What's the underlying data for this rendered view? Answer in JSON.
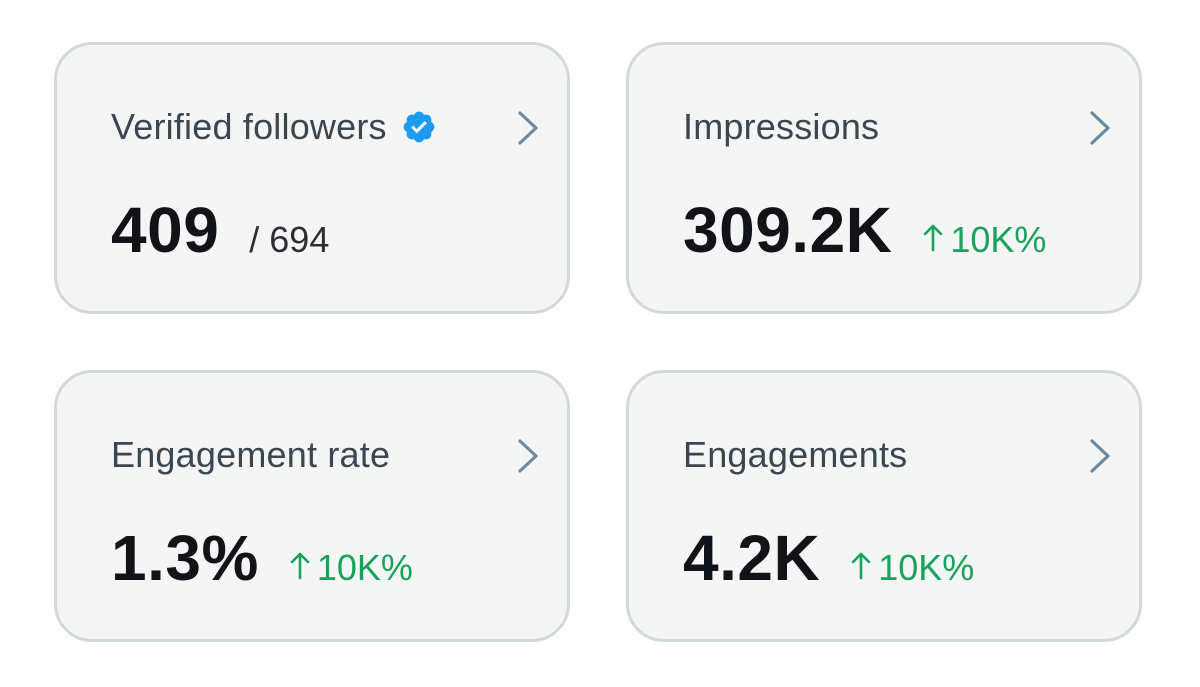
{
  "colors": {
    "card_background": "#f4f6f6",
    "card_border": "#cfd9de",
    "label_text": "#3c4650",
    "value_text": "#0f1419",
    "positive_delta": "#18a35a",
    "verified_badge": "#1d9bf0",
    "chevron": "#6e8a9e"
  },
  "cards": [
    {
      "label": "Verified followers",
      "icon": "verified-badge-icon",
      "value": "409",
      "sub_value": "/ 694",
      "action_icon": "chevron-right-icon"
    },
    {
      "label": "Impressions",
      "value": "309.2K",
      "delta": "10K%",
      "delta_icon": "arrow-up-icon",
      "action_icon": "chevron-right-icon"
    },
    {
      "label": "Engagement rate",
      "value": "1.3%",
      "delta": "10K%",
      "delta_icon": "arrow-up-icon",
      "action_icon": "chevron-right-icon"
    },
    {
      "label": "Engagements",
      "value": "4.2K",
      "delta": "10K%",
      "delta_icon": "arrow-up-icon",
      "action_icon": "chevron-right-icon"
    }
  ]
}
